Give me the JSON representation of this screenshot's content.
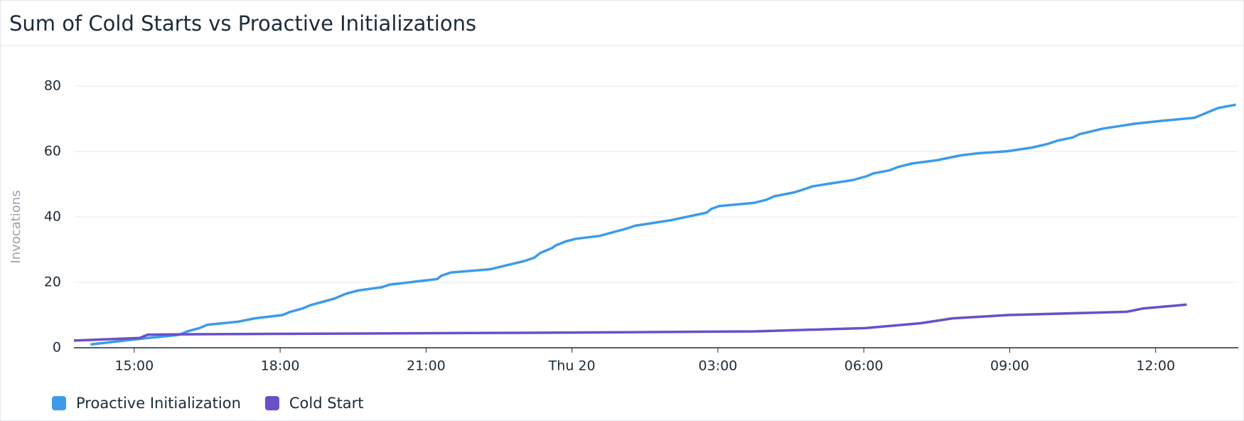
{
  "chart_data": {
    "type": "line",
    "title": "Sum of Cold Starts vs Proactive Initializations",
    "y_label": "Invocations",
    "xlim": [
      -10.24,
      13.7
    ],
    "ylim": [
      0,
      80
    ],
    "xticks": [
      {
        "value": -9,
        "label": "15:00"
      },
      {
        "value": -6,
        "label": "18:00"
      },
      {
        "value": -3,
        "label": "21:00"
      },
      {
        "value": 0,
        "label": "Thu 20"
      },
      {
        "value": 3,
        "label": "03:00"
      },
      {
        "value": 6,
        "label": "06:00"
      },
      {
        "value": 9,
        "label": "09:00"
      },
      {
        "value": 12,
        "label": "12:00"
      }
    ],
    "yticks": [
      0,
      20,
      40,
      60,
      80
    ],
    "grid": true,
    "legend": "bottom",
    "series": [
      {
        "name": "Proactive Initialization",
        "color": "#3d9be9",
        "x": [
          -9.9,
          -9.13,
          -8.72,
          -8.23,
          -8.07,
          -7.91,
          -7.66,
          -7.5,
          -6.85,
          -6.52,
          -5.95,
          -5.79,
          -5.54,
          -5.38,
          -4.89,
          -4.65,
          -4.4,
          -3.91,
          -3.75,
          -2.77,
          -2.69,
          -2.49,
          -1.68,
          -0.98,
          -0.78,
          -0.65,
          -0.41,
          -0.33,
          -0.13,
          0.08,
          0.57,
          1.14,
          1.3,
          2.04,
          2.77,
          2.87,
          3.03,
          3.75,
          3.99,
          4.16,
          4.57,
          4.78,
          4.94,
          5.22,
          5.79,
          6.07,
          6.2,
          6.52,
          6.69,
          6.98,
          7.5,
          7.99,
          8.32,
          8.97,
          9.46,
          9.78,
          9.98,
          10.3,
          10.44,
          10.92,
          11.58,
          12.15,
          12.8,
          13.29,
          13.65
        ],
        "values": [
          1,
          2.3,
          3,
          3.7,
          4,
          5,
          6,
          7,
          8,
          9,
          10,
          11,
          12,
          13,
          15,
          16.5,
          17.5,
          18.5,
          19.3,
          21,
          22,
          23,
          24,
          26.5,
          27.5,
          29,
          30.5,
          31.3,
          32.5,
          33.3,
          34.2,
          36.5,
          37.3,
          39,
          41.3,
          42.5,
          43.3,
          44.3,
          45.2,
          46.3,
          47.5,
          48.5,
          49.3,
          50,
          51.3,
          52.5,
          53.3,
          54.2,
          55.2,
          56.3,
          57.3,
          58.8,
          59.4,
          60.1,
          61.2,
          62.3,
          63.3,
          64.3,
          65.3,
          67,
          68.5,
          69.4,
          70.3,
          73.3,
          74.3
        ]
      },
      {
        "name": "Cold Start",
        "color": "#6a4fc8",
        "x": [
          -10.24,
          -8.89,
          -8.72,
          -8.07,
          -5.22,
          -0.33,
          3.75,
          6.03,
          7.17,
          7.83,
          8.97,
          11.41,
          11.74,
          12.64
        ],
        "values": [
          2.2,
          3,
          4,
          4.1,
          4.3,
          4.6,
          5,
          6,
          7.5,
          9,
          10,
          11,
          12,
          13.2
        ]
      }
    ]
  }
}
